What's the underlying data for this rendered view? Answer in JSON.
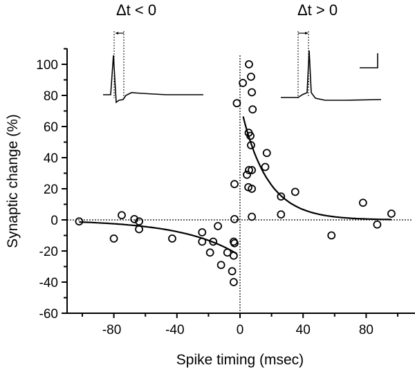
{
  "chart_data": {
    "type": "scatter",
    "title": "",
    "xlabel": "Spike timing (msec)",
    "ylabel": "Synaptic change (%)",
    "xlim": [
      -110,
      111
    ],
    "ylim": [
      -60,
      110
    ],
    "xticks": [
      -80,
      -40,
      0,
      40,
      80
    ],
    "yticks": [
      100,
      80,
      60,
      40,
      20,
      0,
      -20,
      -40,
      -60
    ],
    "grid": false,
    "reference_lines": {
      "x": 0,
      "y": 0
    },
    "series": [
      {
        "name": "data",
        "marker": "open-circle",
        "points": [
          [
            -102,
            -1
          ],
          [
            -80,
            -12
          ],
          [
            -75,
            3
          ],
          [
            -67,
            0.5
          ],
          [
            -64,
            -1
          ],
          [
            -64,
            -6
          ],
          [
            -43,
            -12
          ],
          [
            -24,
            -8
          ],
          [
            -24,
            -14
          ],
          [
            -19,
            -21
          ],
          [
            -17,
            -14
          ],
          [
            -14,
            -4
          ],
          [
            -12,
            -29
          ],
          [
            -8,
            -21
          ],
          [
            -4,
            -23
          ],
          [
            -4,
            -14
          ],
          [
            -3.5,
            -15
          ],
          [
            -5,
            -33
          ],
          [
            -4,
            -40
          ],
          [
            -3.5,
            0.5
          ],
          [
            -3.5,
            23
          ],
          [
            -2,
            75
          ],
          [
            1.8,
            88
          ],
          [
            5.7,
            100
          ],
          [
            7,
            92
          ],
          [
            7.5,
            82
          ],
          [
            8,
            71
          ],
          [
            5.5,
            56
          ],
          [
            6.6,
            54
          ],
          [
            7,
            48
          ],
          [
            17,
            43
          ],
          [
            16,
            34
          ],
          [
            7.5,
            32
          ],
          [
            5.7,
            32
          ],
          [
            4.4,
            29
          ],
          [
            5.3,
            21
          ],
          [
            7.5,
            20
          ],
          [
            26,
            15
          ],
          [
            35,
            18
          ],
          [
            26,
            3.5
          ],
          [
            7.5,
            2
          ],
          [
            58,
            -10
          ],
          [
            78,
            11
          ],
          [
            87,
            -3
          ],
          [
            96,
            4
          ]
        ]
      }
    ],
    "fits": [
      {
        "name": "depression fit",
        "form": "-A*exp(x/tau)",
        "A": 23,
        "tau": 36,
        "x_range": [
          -102,
          -2
        ]
      },
      {
        "name": "potentiation fit",
        "form": "A*exp(-x/tau)",
        "A": 75,
        "tau": 16.5,
        "x_range": [
          2,
          96
        ]
      }
    ],
    "annotations": {
      "left_inset_label": "Δt < 0",
      "right_inset_label": "Δt > 0"
    }
  }
}
